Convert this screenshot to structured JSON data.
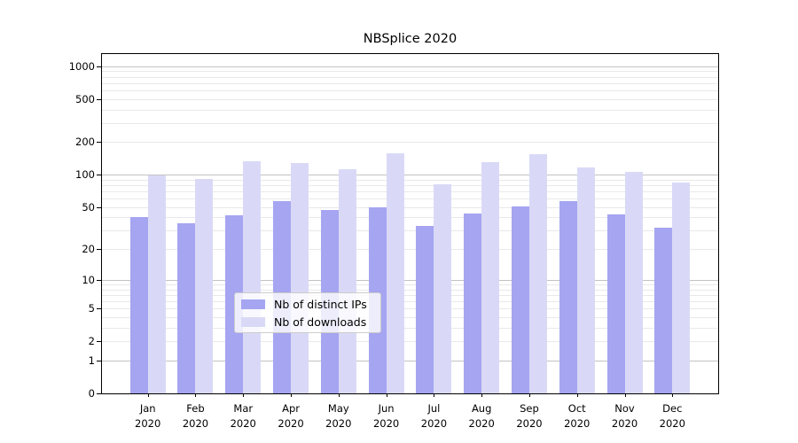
{
  "chart_data": {
    "type": "bar",
    "title": "NBSplice 2020",
    "categories": [
      "Jan",
      "Feb",
      "Mar",
      "Apr",
      "May",
      "Jun",
      "Jul",
      "Aug",
      "Sep",
      "Oct",
      "Nov",
      "Dec"
    ],
    "category_year": "2020",
    "series": [
      {
        "name": "Nb of distinct IPs",
        "color": "#a5a5f1",
        "values": [
          40,
          35,
          42,
          57,
          47,
          50,
          33,
          44,
          51,
          57,
          43,
          32
        ]
      },
      {
        "name": "Nb of downloads",
        "color": "#d9d9f7",
        "values": [
          98,
          91,
          134,
          128,
          113,
          159,
          81,
          132,
          155,
          118,
          107,
          85
        ]
      }
    ],
    "xlabel": "",
    "ylabel": "",
    "yscale": "log10(1+x)",
    "y_ticks": [
      0,
      1,
      2,
      5,
      10,
      20,
      50,
      100,
      200,
      500,
      1000
    ],
    "y_major_gridlines": [
      1,
      10,
      100,
      1000
    ],
    "ylim": [
      0,
      1300
    ],
    "grid": true,
    "legend_position": "bottom-center",
    "colors": {
      "major_grid": "#c3c3c3",
      "minor_grid": "#e9e9e9",
      "axis": "#000000",
      "background": "#ffffff"
    }
  }
}
